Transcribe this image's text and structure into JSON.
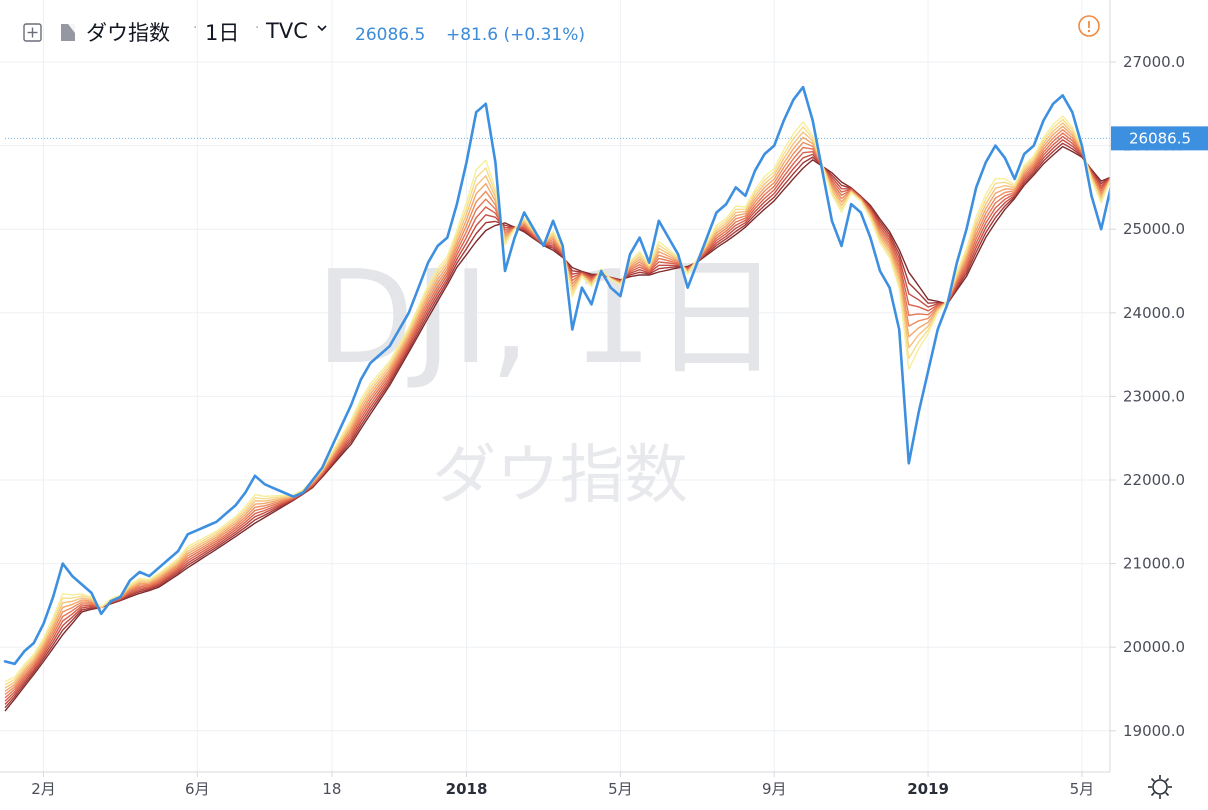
{
  "header": {
    "symbol_name": "ダウ指数",
    "interval": "1日",
    "exchange": "TVC",
    "price": "26086.5",
    "change": "+81.6 (+0.31%)",
    "icons": {
      "expand": "plus-square-icon",
      "flag": "flag-icon",
      "dropdown": "chevron-down-icon",
      "alert": "alert-circle-icon",
      "settings": "gear-icon"
    }
  },
  "watermark": {
    "ticker": "DJI, 1日",
    "name": "ダウ指数"
  },
  "price_label": "26086.5",
  "colors": {
    "price_line": "#3d8fe0",
    "ribbon": [
      "#f6ee9c",
      "#f7dc8c",
      "#f6c27c",
      "#f2a66a",
      "#ee8c5e",
      "#e57554",
      "#d9614c",
      "#c54c43",
      "#a63a38",
      "#7e2a2c"
    ],
    "axis_text": "#4a4e59",
    "grid": "#eef1f5",
    "price_dotted": "#6fb3e6",
    "price_label_bg": "#3d8fe0"
  },
  "chart_data": {
    "type": "line",
    "title": "ダウ指数",
    "xlabel": "",
    "ylabel": "",
    "ylim": [
      18700,
      27400
    ],
    "y_ticks": [
      19000,
      20000,
      21000,
      22000,
      23000,
      24000,
      25000,
      26000,
      27000
    ],
    "y_tick_labels": [
      "19000.0",
      "20000.0",
      "21000.0",
      "22000.0",
      "23000.0",
      "24000.0",
      "25000.0",
      "26000.0",
      "27000.0"
    ],
    "x_range": [
      0,
      28.6
    ],
    "x_ticks": [
      {
        "label": "2月",
        "x": 1.0
      },
      {
        "label": "6月",
        "x": 5.0
      },
      {
        "label": "18",
        "x": 8.5
      },
      {
        "label": "2018",
        "x": 12.0
      },
      {
        "label": "5月",
        "x": 16.0
      },
      {
        "label": "9月",
        "x": 20.0
      },
      {
        "label": "2019",
        "x": 24.0
      },
      {
        "label": "5月",
        "x": 28.0
      }
    ],
    "last_value": 26086.5,
    "series": [
      {
        "style": "price",
        "points": [
          [
            0,
            19830
          ],
          [
            0.25,
            19800
          ],
          [
            0.5,
            19950
          ],
          [
            0.75,
            20050
          ],
          [
            1.0,
            20280
          ],
          [
            1.25,
            20600
          ],
          [
            1.5,
            21000
          ],
          [
            1.75,
            20850
          ],
          [
            2.0,
            20750
          ],
          [
            2.25,
            20650
          ],
          [
            2.5,
            20400
          ],
          [
            2.75,
            20550
          ],
          [
            3.0,
            20600
          ],
          [
            3.25,
            20800
          ],
          [
            3.5,
            20900
          ],
          [
            3.75,
            20850
          ],
          [
            4.0,
            20950
          ],
          [
            4.25,
            21050
          ],
          [
            4.5,
            21150
          ],
          [
            4.75,
            21350
          ],
          [
            5.0,
            21400
          ],
          [
            5.25,
            21450
          ],
          [
            5.5,
            21500
          ],
          [
            5.75,
            21600
          ],
          [
            6.0,
            21700
          ],
          [
            6.25,
            21850
          ],
          [
            6.5,
            22050
          ],
          [
            6.75,
            21950
          ],
          [
            7.0,
            21900
          ],
          [
            7.25,
            21850
          ],
          [
            7.5,
            21800
          ],
          [
            7.75,
            21850
          ],
          [
            8.0,
            22000
          ],
          [
            8.25,
            22150
          ],
          [
            8.5,
            22400
          ],
          [
            8.75,
            22650
          ],
          [
            9.0,
            22900
          ],
          [
            9.25,
            23200
          ],
          [
            9.5,
            23400
          ],
          [
            9.75,
            23500
          ],
          [
            10.0,
            23600
          ],
          [
            10.25,
            23800
          ],
          [
            10.5,
            24000
          ],
          [
            10.75,
            24300
          ],
          [
            11.0,
            24600
          ],
          [
            11.25,
            24800
          ],
          [
            11.5,
            24900
          ],
          [
            11.75,
            25300
          ],
          [
            12.0,
            25800
          ],
          [
            12.25,
            26400
          ],
          [
            12.5,
            26500
          ],
          [
            12.75,
            25800
          ],
          [
            13.0,
            24500
          ],
          [
            13.25,
            24900
          ],
          [
            13.5,
            25200
          ],
          [
            13.75,
            25000
          ],
          [
            14.0,
            24800
          ],
          [
            14.25,
            25100
          ],
          [
            14.5,
            24800
          ],
          [
            14.75,
            23800
          ],
          [
            15.0,
            24300
          ],
          [
            15.25,
            24100
          ],
          [
            15.5,
            24500
          ],
          [
            15.75,
            24300
          ],
          [
            16.0,
            24200
          ],
          [
            16.25,
            24700
          ],
          [
            16.5,
            24900
          ],
          [
            16.75,
            24600
          ],
          [
            17.0,
            25100
          ],
          [
            17.25,
            24900
          ],
          [
            17.5,
            24700
          ],
          [
            17.75,
            24300
          ],
          [
            18.0,
            24600
          ],
          [
            18.25,
            24900
          ],
          [
            18.5,
            25200
          ],
          [
            18.75,
            25300
          ],
          [
            19.0,
            25500
          ],
          [
            19.25,
            25400
          ],
          [
            19.5,
            25700
          ],
          [
            19.75,
            25900
          ],
          [
            20.0,
            26000
          ],
          [
            20.25,
            26300
          ],
          [
            20.5,
            26550
          ],
          [
            20.75,
            26700
          ],
          [
            21.0,
            26300
          ],
          [
            21.25,
            25700
          ],
          [
            21.5,
            25100
          ],
          [
            21.75,
            24800
          ],
          [
            22.0,
            25300
          ],
          [
            22.25,
            25200
          ],
          [
            22.5,
            24900
          ],
          [
            22.75,
            24500
          ],
          [
            23.0,
            24300
          ],
          [
            23.25,
            23800
          ],
          [
            23.5,
            22200
          ],
          [
            23.75,
            22800
          ],
          [
            24.0,
            23300
          ],
          [
            24.25,
            23800
          ],
          [
            24.5,
            24100
          ],
          [
            24.75,
            24600
          ],
          [
            25.0,
            25000
          ],
          [
            25.25,
            25500
          ],
          [
            25.5,
            25800
          ],
          [
            25.75,
            26000
          ],
          [
            26.0,
            25850
          ],
          [
            26.25,
            25600
          ],
          [
            26.5,
            25900
          ],
          [
            26.75,
            26000
          ],
          [
            27.0,
            26300
          ],
          [
            27.25,
            26500
          ],
          [
            27.5,
            26600
          ],
          [
            27.75,
            26400
          ],
          [
            28.0,
            26000
          ],
          [
            28.25,
            25400
          ],
          [
            28.5,
            25000
          ],
          [
            28.75,
            25500
          ],
          [
            29.0,
            25900
          ],
          [
            29.25,
            26086.5
          ]
        ]
      },
      {
        "style": "ribbon",
        "points": [
          [
            0,
            19300
          ],
          [
            1.0,
            19900
          ],
          [
            2.0,
            20500
          ],
          [
            3.0,
            20650
          ],
          [
            4.0,
            20800
          ],
          [
            5.0,
            21100
          ],
          [
            6.0,
            21400
          ],
          [
            7.0,
            21700
          ],
          [
            8.0,
            22000
          ],
          [
            9.0,
            22500
          ],
          [
            10.0,
            23200
          ],
          [
            11.0,
            24000
          ],
          [
            11.75,
            24600
          ],
          [
            12.5,
            25000
          ],
          [
            13.0,
            25200
          ],
          [
            14.0,
            24900
          ],
          [
            15.0,
            24600
          ],
          [
            16.0,
            24500
          ],
          [
            17.0,
            24550
          ],
          [
            18.0,
            24700
          ],
          [
            19.0,
            25000
          ],
          [
            20.0,
            25400
          ],
          [
            21.0,
            25900
          ],
          [
            21.5,
            25800
          ],
          [
            22.0,
            25600
          ],
          [
            22.5,
            25400
          ],
          [
            23.0,
            25100
          ],
          [
            23.5,
            24700
          ],
          [
            24.0,
            24300
          ],
          [
            24.5,
            24200
          ],
          [
            25.0,
            24500
          ],
          [
            25.5,
            24950
          ],
          [
            26.0,
            25300
          ],
          [
            26.5,
            25600
          ],
          [
            27.0,
            25850
          ],
          [
            27.5,
            26050
          ],
          [
            28.0,
            25950
          ],
          [
            28.5,
            25700
          ],
          [
            29.0,
            25750
          ],
          [
            29.25,
            25780
          ]
        ]
      }
    ]
  }
}
